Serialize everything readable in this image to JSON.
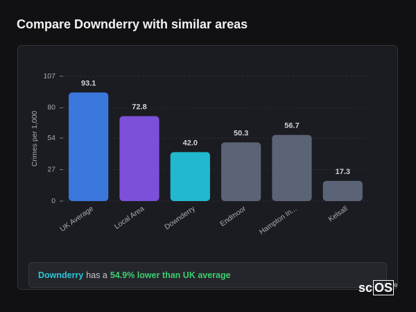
{
  "header": {
    "title": "Compare Downderry with similar areas"
  },
  "chart_data": {
    "type": "bar",
    "y_label": "Crimes per 1,000",
    "categories": [
      "UK Average",
      "Local Area",
      "Downderry",
      "Endmoor",
      "Hampton In...",
      "Kelsall"
    ],
    "values": [
      93.1,
      72.8,
      42.0,
      50.3,
      56.7,
      17.3
    ],
    "value_labels": [
      "93.1",
      "72.8",
      "42.0",
      "50.3",
      "56.7",
      "17.3"
    ],
    "colors": [
      "#3b78dc",
      "#7c50d8",
      "#22b9d0",
      "#5b6476",
      "#5b6476",
      "#5b6476"
    ],
    "ylim": [
      0,
      107
    ],
    "yticks": [
      0,
      27,
      54,
      80,
      107
    ],
    "grid": true
  },
  "summary": {
    "area": "Downderry",
    "middle": "has a",
    "highlight": "54.9% lower than UK average"
  },
  "logo": {
    "prefix": "sc",
    "boxed": "OS",
    "mark": "®"
  }
}
